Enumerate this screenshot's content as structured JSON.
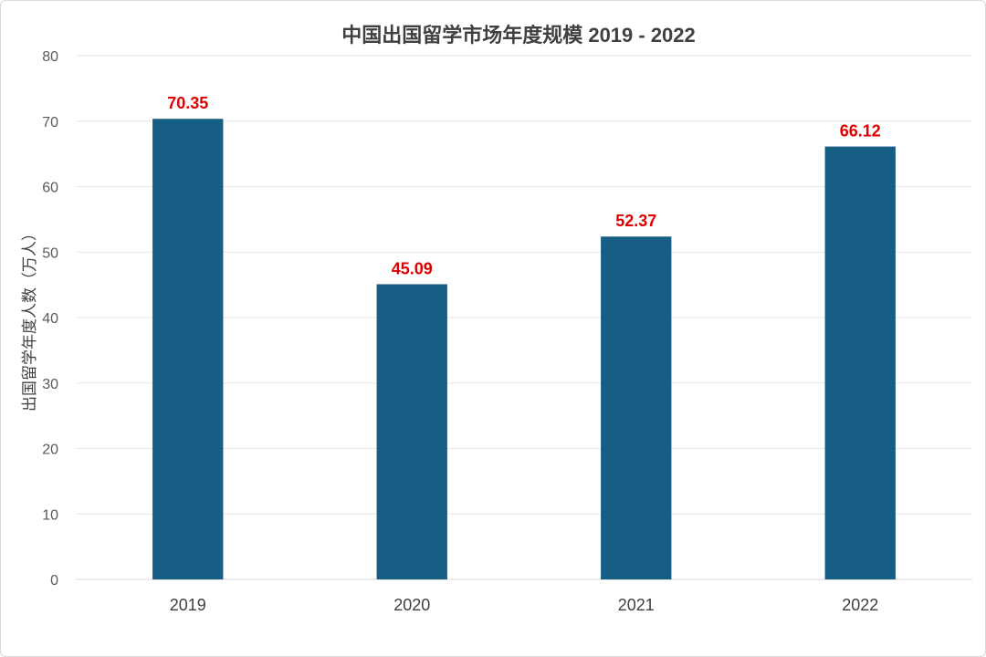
{
  "chart_data": {
    "type": "bar",
    "title": "中国出国留学市场年度规模 2019 - 2022",
    "xlabel": "",
    "ylabel": "出国留学年度人数（万人）",
    "categories": [
      "2019",
      "2020",
      "2021",
      "2022"
    ],
    "values": [
      70.35,
      45.09,
      52.37,
      66.12
    ],
    "data_labels": [
      "70.35",
      "45.09",
      "52.37",
      "66.12"
    ],
    "ylim": [
      0,
      80
    ],
    "yticks": [
      0,
      10,
      20,
      30,
      40,
      50,
      60,
      70,
      80
    ],
    "grid": true,
    "legend": "none",
    "colors": {
      "bar": "#165e83",
      "data_label": "#e00000"
    }
  }
}
